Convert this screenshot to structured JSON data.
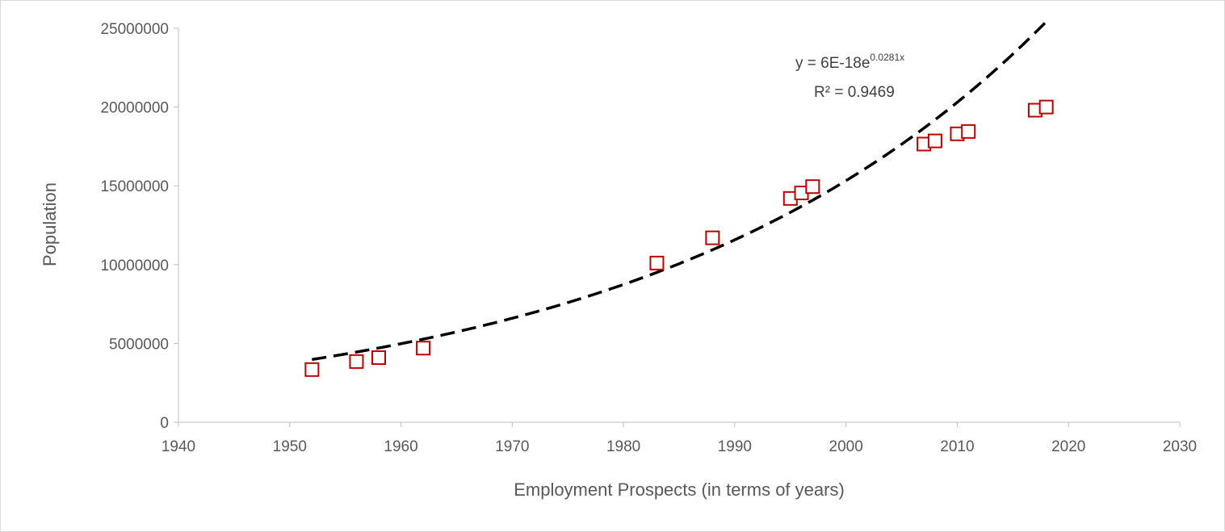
{
  "chart_data": {
    "type": "scatter",
    "title": "",
    "xlabel": "Employment Prospects (in terms of years)",
    "ylabel": "Population",
    "xlim": [
      1940,
      2030
    ],
    "ylim": [
      0,
      25000000
    ],
    "x_ticks": [
      1940,
      1950,
      1960,
      1970,
      1980,
      1990,
      2000,
      2010,
      2020,
      2030
    ],
    "x_tick_labels": [
      "1940",
      "1950",
      "1960",
      "1970",
      "1980",
      "1990",
      "2000",
      "2010",
      "2020",
      "2030"
    ],
    "y_ticks": [
      0,
      5000000,
      10000000,
      15000000,
      20000000,
      25000000
    ],
    "y_tick_labels": [
      "0",
      "5000000",
      "10000000",
      "15000000",
      "20000000",
      "25000000"
    ],
    "grid": false,
    "legend": "none",
    "series": [
      {
        "marker": "hollow-square",
        "color": "#c00000",
        "x": [
          1952,
          1956,
          1958,
          1962,
          1983,
          1988,
          1995,
          1996,
          1997,
          2007,
          2008,
          2010,
          2011,
          2017,
          2018
        ],
        "y": [
          3340000,
          3850000,
          4100000,
          4700000,
          10100000,
          11700000,
          14200000,
          14550000,
          14950000,
          17650000,
          17850000,
          18300000,
          18450000,
          19800000,
          20000000
        ]
      }
    ],
    "trendline": {
      "type": "exponential",
      "color": "#000000",
      "style": "dashed",
      "x_range": [
        1952,
        2018
      ],
      "coef_a": 6e-18,
      "coef_b": 0.0281
    },
    "annotations": {
      "equation_prefix": "y = 6E-18e",
      "equation_exponent": "0.0281x",
      "r_squared": "R² = 0.9469"
    }
  }
}
